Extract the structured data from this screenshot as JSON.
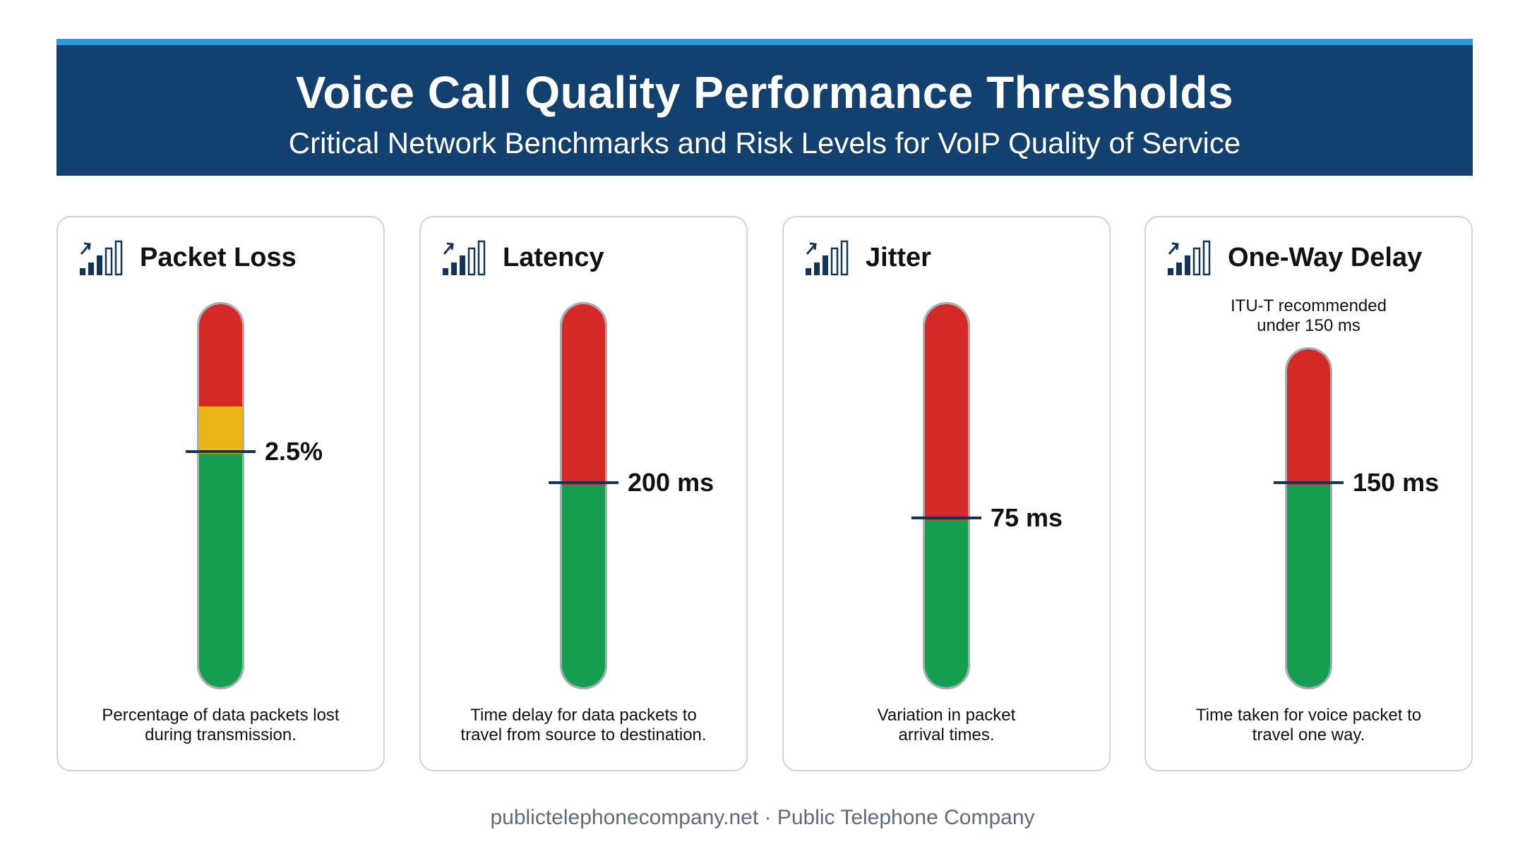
{
  "header": {
    "title": "Voice Call Quality Performance Thresholds",
    "subtitle": "Critical Network Benchmarks and Risk Levels for VoIP Quality of Service"
  },
  "colors": {
    "header_bg": "#13416f",
    "header_accent": "#2a9be0",
    "red_zone": "#d42a27",
    "amber_zone": "#ebb517",
    "green_zone": "#159e4f",
    "marker": "#13345b"
  },
  "cards": [
    {
      "icon": "signal-bars-trend-icon",
      "title": "Packet Loss",
      "note": "",
      "threshold_label": "2.5%",
      "threshold_fraction": 0.61,
      "description_line1": "Percentage of data packets lost",
      "description_line2": "during transmission."
    },
    {
      "icon": "signal-bars-trend-icon",
      "title": "Latency",
      "note": "",
      "threshold_label": "200 ms",
      "threshold_fraction": 0.53,
      "description_line1": "Time delay for data packets to",
      "description_line2": "travel from source to destination."
    },
    {
      "icon": "signal-bars-trend-icon",
      "title": "Jitter",
      "note": "",
      "threshold_label": "75 ms",
      "threshold_fraction": 0.44,
      "description_line1": "Variation in packet",
      "description_line2": "arrival times."
    },
    {
      "icon": "signal-bars-trend-icon",
      "title": "One-Way Delay",
      "note_line1": "ITU-T recommended",
      "note_line2": "under 150 ms",
      "threshold_label": "150 ms",
      "threshold_fraction": 0.6,
      "description_line1": "Time taken for voice packet to",
      "description_line2": "travel one way."
    }
  ],
  "footer": {
    "text": "publictelephonecompany.net · Public Telephone Company"
  }
}
